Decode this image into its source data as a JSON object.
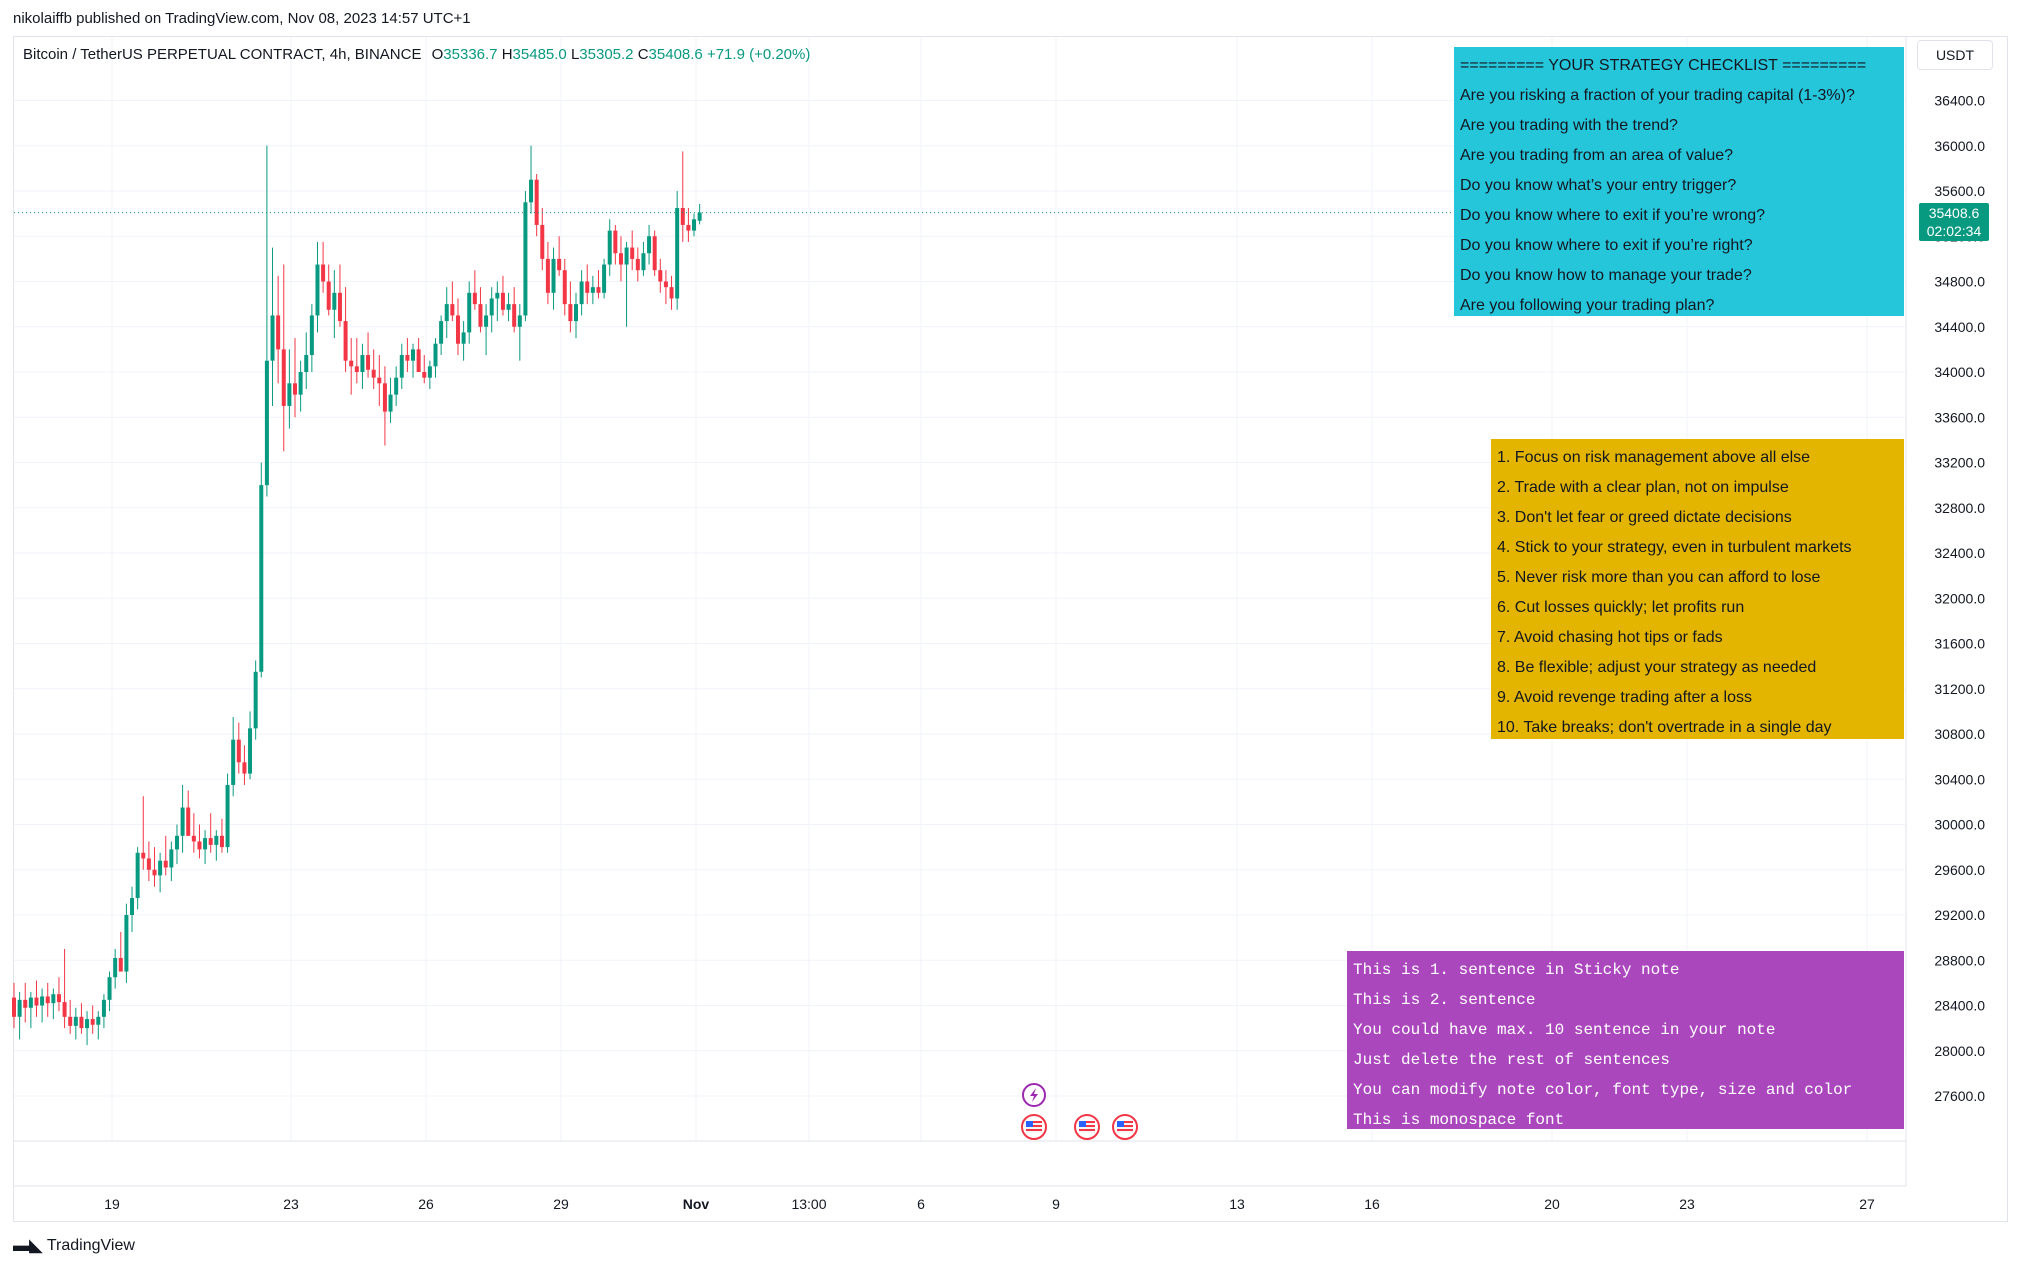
{
  "publisher_line": "nikolaiffb published on TradingView.com, Nov 08, 2023 14:57 UTC+1",
  "symbol": {
    "name": "Bitcoin / TetherUS PERPETUAL CONTRACT, 4h, BINANCE",
    "open_label": "O",
    "open": "35336.7",
    "high_label": "H",
    "high": "35485.0",
    "low_label": "L",
    "low": "35305.2",
    "close_label": "C",
    "close": "35408.6",
    "change": "+71.9 (+0.20%)"
  },
  "currency_button": "USDT",
  "price_tag": {
    "price": "35408.6",
    "countdown": "02:02:34"
  },
  "colors": {
    "up": "#089981",
    "down": "#f23645",
    "grid": "#f0f3fa",
    "note_cyan": "#26c6da",
    "note_gold": "#e4b500",
    "note_purple": "#ab47bc"
  },
  "notes": {
    "checklist": [
      "========= YOUR STRATEGY CHECKLIST =========",
      "Are you risking a fraction of your trading capital (1-3%)?",
      "Are you trading with the trend?",
      "Are you trading from an area of value?",
      "Do you know what’s your entry trigger?",
      "Do you know where to exit if you’re wrong?",
      "Do you know where to exit if you’re right?",
      "Do you know how to manage your trade?",
      "Are you following your trading plan?"
    ],
    "rules": [
      "1. Focus on risk management above all else",
      "2. Trade with a clear plan, not on impulse",
      "3. Don't let fear or greed dictate decisions",
      "4. Stick to your strategy, even in turbulent markets",
      "5. Never risk more than you can afford to lose",
      "6. Cut losses quickly; let profits run",
      "7. Avoid chasing hot tips or fads",
      "8. Be flexible; adjust your strategy as needed",
      "9. Avoid revenge trading after a loss",
      "10. Take breaks; don't overtrade in a single day"
    ],
    "sticky": [
      "This is 1. sentence in Sticky note",
      "This is 2. sentence",
      "You could have max. 10 sentence in your note",
      "Just delete the rest of sentences",
      "You can modify note color, font type, size and color",
      "This is monospace font"
    ]
  },
  "footer_logo": "TradingView",
  "chart_data": {
    "type": "candlestick",
    "y_axis_ticks": [
      "36400.0",
      "36000.0",
      "35600.0",
      "35200.0",
      "34800.0",
      "34400.0",
      "34000.0",
      "33600.0",
      "33200.0",
      "32800.0",
      "32400.0",
      "32000.0",
      "31600.0",
      "31200.0",
      "30800.0",
      "30400.0",
      "30000.0",
      "29600.0",
      "29200.0",
      "28800.0",
      "28400.0",
      "28000.0",
      "27600.0"
    ],
    "x_axis_ticks": [
      "19",
      "23",
      "26",
      "29",
      "Nov",
      "13:00",
      "6",
      "9",
      "13",
      "16",
      "20",
      "23",
      "27"
    ],
    "last_price": 35408.6,
    "ohlc": [
      [
        28470,
        28600,
        28200,
        28300
      ],
      [
        28300,
        28520,
        28100,
        28450
      ],
      [
        28450,
        28600,
        28250,
        28380
      ],
      [
        28380,
        28520,
        28200,
        28470
      ],
      [
        28470,
        28620,
        28300,
        28400
      ],
      [
        28400,
        28550,
        28250,
        28480
      ],
      [
        28480,
        28600,
        28300,
        28420
      ],
      [
        28420,
        28550,
        28280,
        28500
      ],
      [
        28500,
        28650,
        28350,
        28430
      ],
      [
        28430,
        28900,
        28200,
        28300
      ],
      [
        28300,
        28450,
        28150,
        28220
      ],
      [
        28220,
        28380,
        28100,
        28300
      ],
      [
        28300,
        28420,
        28150,
        28200
      ],
      [
        28200,
        28350,
        28050,
        28280
      ],
      [
        28280,
        28400,
        28150,
        28230
      ],
      [
        28230,
        28350,
        28100,
        28300
      ],
      [
        28300,
        28500,
        28200,
        28450
      ],
      [
        28450,
        28700,
        28350,
        28650
      ],
      [
        28650,
        28900,
        28550,
        28820
      ],
      [
        28820,
        29050,
        28700,
        28700
      ],
      [
        28700,
        29300,
        28600,
        29200
      ],
      [
        29200,
        29450,
        29050,
        29350
      ],
      [
        29350,
        29800,
        29250,
        29750
      ],
      [
        29750,
        30250,
        29600,
        29700
      ],
      [
        29700,
        29850,
        29500,
        29600
      ],
      [
        29600,
        29800,
        29450,
        29550
      ],
      [
        29550,
        29750,
        29400,
        29680
      ],
      [
        29680,
        29900,
        29550,
        29620
      ],
      [
        29620,
        29850,
        29500,
        29780
      ],
      [
        29780,
        30000,
        29650,
        29900
      ],
      [
        29900,
        30350,
        29750,
        30150
      ],
      [
        30150,
        30300,
        29900,
        29900
      ],
      [
        29900,
        30100,
        29750,
        29850
      ],
      [
        29850,
        30000,
        29700,
        29780
      ],
      [
        29780,
        29950,
        29650,
        29880
      ],
      [
        29880,
        30100,
        29750,
        29820
      ],
      [
        29820,
        29950,
        29680,
        29900
      ],
      [
        29900,
        30050,
        29750,
        29800
      ],
      [
        29800,
        30450,
        29750,
        30350
      ],
      [
        30350,
        30950,
        30250,
        30750
      ],
      [
        30750,
        30900,
        30450,
        30550
      ],
      [
        30550,
        30700,
        30350,
        30450
      ],
      [
        30450,
        31000,
        30400,
        30850
      ],
      [
        30850,
        31450,
        30750,
        31350
      ],
      [
        31350,
        33200,
        31300,
        33000
      ],
      [
        33000,
        36000,
        32900,
        34100
      ],
      [
        34100,
        35100,
        33700,
        34500
      ],
      [
        34500,
        34850,
        33900,
        34200
      ],
      [
        34200,
        34950,
        33300,
        33700
      ],
      [
        33700,
        34200,
        33500,
        33900
      ],
      [
        33900,
        34300,
        33600,
        33800
      ],
      [
        33800,
        34100,
        33650,
        34000
      ],
      [
        34000,
        34350,
        33850,
        34150
      ],
      [
        34150,
        34600,
        34000,
        34500
      ],
      [
        34500,
        35150,
        34350,
        34950
      ],
      [
        34950,
        35150,
        34700,
        34800
      ],
      [
        34800,
        34950,
        34500,
        34550
      ],
      [
        34550,
        34900,
        34300,
        34700
      ],
      [
        34700,
        34950,
        34400,
        34450
      ],
      [
        34450,
        34750,
        34000,
        34100
      ],
      [
        34100,
        34300,
        33800,
        34050
      ],
      [
        34050,
        34300,
        33900,
        34000
      ],
      [
        34000,
        34250,
        33850,
        34150
      ],
      [
        34150,
        34350,
        33950,
        34020
      ],
      [
        34020,
        34200,
        33850,
        33950
      ],
      [
        33950,
        34150,
        33700,
        33900
      ],
      [
        33900,
        34050,
        33350,
        33650
      ],
      [
        33650,
        33950,
        33550,
        33800
      ],
      [
        33800,
        34050,
        33700,
        33950
      ],
      [
        33950,
        34250,
        33850,
        34150
      ],
      [
        34150,
        34300,
        34000,
        34100
      ],
      [
        34100,
        34250,
        33950,
        34200
      ],
      [
        34200,
        34300,
        34050,
        34000
      ],
      [
        34000,
        34150,
        33900,
        33950
      ],
      [
        33950,
        34100,
        33850,
        34050
      ],
      [
        34050,
        34300,
        33950,
        34250
      ],
      [
        34250,
        34500,
        34150,
        34450
      ],
      [
        34450,
        34750,
        34300,
        34600
      ],
      [
        34600,
        34800,
        34450,
        34500
      ],
      [
        34500,
        34650,
        34150,
        34250
      ],
      [
        34250,
        34450,
        34100,
        34350
      ],
      [
        34350,
        34800,
        34250,
        34700
      ],
      [
        34700,
        34900,
        34550,
        34600
      ],
      [
        34600,
        34750,
        34350,
        34400
      ],
      [
        34400,
        34600,
        34150,
        34500
      ],
      [
        34500,
        34750,
        34350,
        34650
      ],
      [
        34650,
        34800,
        34450,
        34700
      ],
      [
        34700,
        34850,
        34500,
        34550
      ],
      [
        34550,
        34700,
        34450,
        34600
      ],
      [
        34600,
        34750,
        34350,
        34400
      ],
      [
        34400,
        34600,
        34100,
        34500
      ],
      [
        34500,
        35600,
        34450,
        35500
      ],
      [
        35500,
        36000,
        35400,
        35700
      ],
      [
        35700,
        35750,
        35200,
        35300
      ],
      [
        35300,
        35450,
        34900,
        35000
      ],
      [
        35000,
        35150,
        34600,
        34700
      ],
      [
        34700,
        35100,
        34550,
        35000
      ],
      [
        35000,
        35200,
        34850,
        34900
      ],
      [
        34900,
        35000,
        34500,
        34600
      ],
      [
        34600,
        34800,
        34350,
        34450
      ],
      [
        34450,
        34700,
        34300,
        34600
      ],
      [
        34600,
        34900,
        34500,
        34800
      ],
      [
        34800,
        34950,
        34600,
        34700
      ],
      [
        34700,
        34850,
        34600,
        34750
      ],
      [
        34750,
        34900,
        34650,
        34700
      ],
      [
        34700,
        35000,
        34650,
        34950
      ],
      [
        34950,
        35350,
        34850,
        35250
      ],
      [
        35250,
        35300,
        34950,
        35050
      ],
      [
        35050,
        35200,
        34800,
        34950
      ],
      [
        34950,
        35150,
        34400,
        35100
      ],
      [
        35100,
        35250,
        34900,
        35000
      ],
      [
        35000,
        35100,
        34800,
        34900
      ],
      [
        34900,
        35150,
        34850,
        35050
      ],
      [
        35050,
        35300,
        34950,
        35200
      ],
      [
        35200,
        35250,
        34850,
        34900
      ],
      [
        34900,
        35000,
        34700,
        34800
      ],
      [
        34800,
        34900,
        34600,
        34750
      ],
      [
        34750,
        34850,
        34550,
        34650
      ],
      [
        34650,
        35600,
        34550,
        35450
      ],
      [
        35450,
        35950,
        35150,
        35300
      ],
      [
        35300,
        35450,
        35150,
        35250
      ],
      [
        35250,
        35400,
        35200,
        35350
      ],
      [
        35336.7,
        35485,
        35305.2,
        35408.6
      ]
    ]
  }
}
